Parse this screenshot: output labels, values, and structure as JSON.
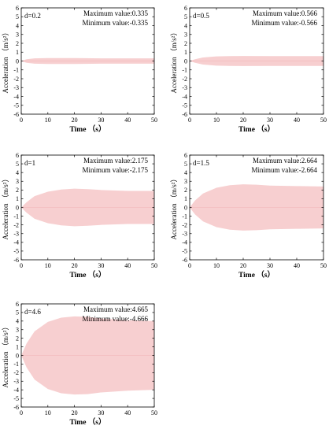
{
  "chart_data": [
    {
      "type": "area",
      "panel_label": "d=0.2",
      "annotations": {
        "max": "Maximum value:0.335",
        "min": "Minimum value:-0.335"
      },
      "xlabel": "Time （s）",
      "ylabel": "Acceleration （m/s²）",
      "xlim": [
        0,
        50
      ],
      "ylim": [
        -6,
        6
      ],
      "xticks": [
        0,
        10,
        20,
        30,
        40,
        50
      ],
      "yticks": [
        -6,
        -5,
        -4,
        -3,
        -2,
        -1,
        0,
        1,
        2,
        3,
        4,
        5,
        6
      ],
      "envelope": {
        "x": [
          0,
          2,
          5,
          10,
          15,
          20,
          30,
          40,
          50
        ],
        "upper": [
          0,
          0.2,
          0.3,
          0.33,
          0.335,
          0.33,
          0.3,
          0.3,
          0.3
        ]
      },
      "fill_color": "#f7cfd0"
    },
    {
      "type": "area",
      "panel_label": "d=0.5",
      "annotations": {
        "max": "Maximum value:0.566",
        "min": "Minimum value:-0.566"
      },
      "xlabel": "Time （s）",
      "ylabel": "Acceleration （m/s²）",
      "xlim": [
        0,
        50
      ],
      "ylim": [
        -6,
        6
      ],
      "xticks": [
        0,
        10,
        20,
        30,
        40,
        50
      ],
      "yticks": [
        -6,
        -5,
        -4,
        -3,
        -2,
        -1,
        0,
        1,
        2,
        3,
        4,
        5,
        6
      ],
      "envelope": {
        "x": [
          0,
          2,
          5,
          10,
          15,
          20,
          30,
          40,
          50
        ],
        "upper": [
          0,
          0.2,
          0.4,
          0.52,
          0.56,
          0.566,
          0.55,
          0.55,
          0.55
        ]
      },
      "fill_color": "#f7cfd0"
    },
    {
      "type": "area",
      "panel_label": "d=1",
      "annotations": {
        "max": "Maximum value:2.175",
        "min": "Minimum value:-2.175"
      },
      "xlabel": "Time （s）",
      "ylabel": "Acceleration （m/s²）",
      "xlim": [
        0,
        50
      ],
      "ylim": [
        -6,
        6
      ],
      "xticks": [
        0,
        10,
        20,
        30,
        40,
        50
      ],
      "yticks": [
        -6,
        -5,
        -4,
        -3,
        -2,
        -1,
        0,
        1,
        2,
        3,
        4,
        5,
        6
      ],
      "envelope": {
        "x": [
          0,
          2,
          5,
          10,
          15,
          20,
          25,
          30,
          40,
          50
        ],
        "upper": [
          0,
          0.6,
          1.3,
          1.8,
          2.05,
          2.15,
          2.1,
          2.0,
          1.9,
          1.9
        ]
      },
      "fill_color": "#f7cfd0"
    },
    {
      "type": "area",
      "panel_label": "d=1.5",
      "annotations": {
        "max": "Maximum value:2.664",
        "min": "Minimum value:-2.664"
      },
      "xlabel": "Time （s）",
      "ylabel": "Acceleration （m/s²）",
      "xlim": [
        0,
        50
      ],
      "ylim": [
        -6,
        6
      ],
      "xticks": [
        0,
        10,
        20,
        30,
        40,
        50
      ],
      "yticks": [
        -6,
        -5,
        -4,
        -3,
        -2,
        -1,
        0,
        1,
        2,
        3,
        4,
        5,
        6
      ],
      "envelope": {
        "x": [
          0,
          2,
          5,
          10,
          15,
          20,
          25,
          30,
          40,
          50
        ],
        "upper": [
          0,
          0.8,
          1.6,
          2.25,
          2.55,
          2.65,
          2.6,
          2.5,
          2.45,
          2.4
        ]
      },
      "fill_color": "#f7cfd0"
    },
    {
      "type": "area",
      "panel_label": "d=4.6",
      "annotations": {
        "max": "Maximum value:4.665",
        "min": "Minimum value:-4.666"
      },
      "xlabel": "Time （s）",
      "ylabel": "Acceleration （m/s²）",
      "xlim": [
        0,
        50
      ],
      "ylim": [
        -6,
        6
      ],
      "xticks": [
        0,
        10,
        20,
        30,
        40,
        50
      ],
      "yticks": [
        -6,
        -5,
        -4,
        -3,
        -2,
        -1,
        0,
        1,
        2,
        3,
        4,
        5,
        6
      ],
      "envelope": {
        "x": [
          0,
          2,
          5,
          10,
          15,
          20,
          25,
          30,
          40,
          50
        ],
        "upper": [
          0,
          1.4,
          2.8,
          3.9,
          4.4,
          4.55,
          4.5,
          4.3,
          4.1,
          4.0
        ]
      },
      "fill_color": "#f7cfd0"
    }
  ]
}
